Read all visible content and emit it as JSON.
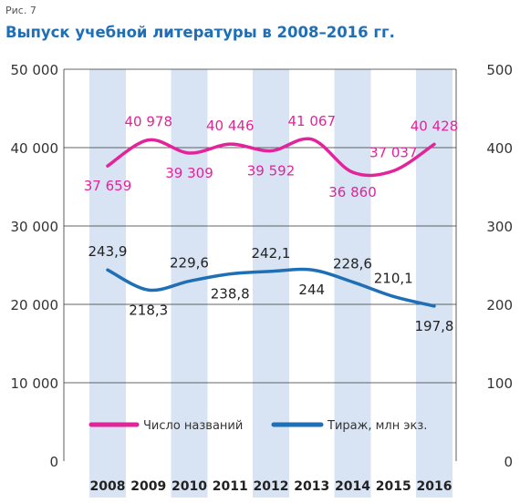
{
  "figure_label": "Рис. 7",
  "chart_data": {
    "type": "line",
    "title": "Выпуск учебной литературы в 2008–2016 гг.",
    "categories": [
      "2008",
      "2009",
      "2010",
      "2011",
      "2012",
      "2013",
      "2014",
      "2015",
      "2016"
    ],
    "highlighted_categories": [
      "2008",
      "2010",
      "2012",
      "2014",
      "2016"
    ],
    "y_left": {
      "range": [
        0,
        50000
      ],
      "ticks": [
        "0",
        "10 000",
        "20 000",
        "30 000",
        "40 000",
        "50 000"
      ]
    },
    "y_right": {
      "range": [
        0,
        500
      ],
      "ticks": [
        "0",
        "100",
        "200",
        "300",
        "400",
        "500"
      ]
    },
    "grid": true,
    "legend_position": "bottom-inside",
    "series": [
      {
        "name": "Число названий",
        "axis": "left",
        "color": "#e2249a",
        "values": [
          37659,
          40978,
          39309,
          40446,
          39592,
          41067,
          36860,
          37037,
          40428
        ],
        "labels": [
          "37 659",
          "40 978",
          "39 309",
          "40 446",
          "39 592",
          "41 067",
          "36 860",
          "37 037",
          "40 428"
        ],
        "label_positions": [
          "below",
          "above",
          "below",
          "above",
          "below",
          "above",
          "below",
          "above",
          "above"
        ]
      },
      {
        "name": "Тираж, млн экз.",
        "axis": "right",
        "color": "#1f6fb7",
        "values": [
          243.9,
          218.3,
          229.6,
          238.8,
          242.1,
          244,
          228.6,
          210.1,
          197.8
        ],
        "labels": [
          "243,9",
          "218,3",
          "229,6",
          "238,8",
          "242,1",
          "244",
          "228,6",
          "210,1",
          "197,8"
        ],
        "label_positions": [
          "above",
          "below",
          "above",
          "below",
          "above",
          "below",
          "above",
          "above",
          "below"
        ]
      }
    ]
  }
}
